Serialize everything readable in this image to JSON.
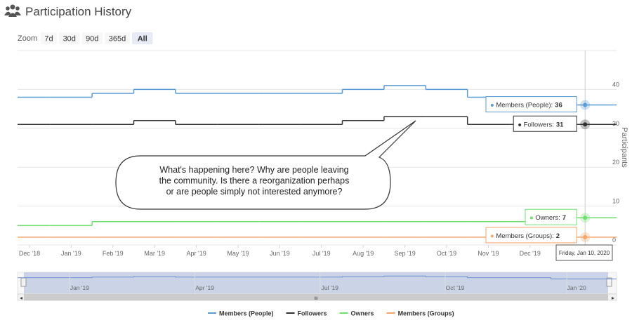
{
  "chart_data": {
    "type": "line",
    "title": "Participation History",
    "zoom_label": "Zoom",
    "zoom_buttons": [
      "7d",
      "30d",
      "90d",
      "365d",
      "All"
    ],
    "categories": [
      "Dec '18",
      "Jan '19",
      "Feb '19",
      "Mar '19",
      "Apr '19",
      "May '19",
      "Jun '19",
      "Jul '19",
      "Aug '19",
      "Sep '19",
      "Oct '19",
      "Nov '19",
      "Dec '19",
      "Jan '20"
    ],
    "y_label": "Participants",
    "ylim": [
      0,
      50
    ],
    "yticks": [
      0,
      10,
      20,
      30,
      40
    ],
    "grid": true,
    "series": [
      {
        "name": "Members (People)",
        "color": "#5b9bd5",
        "values": [
          38,
          38,
          39,
          40,
          39,
          39,
          39,
          39,
          40,
          41,
          40,
          38,
          38,
          36
        ]
      },
      {
        "name": "Followers",
        "color": "#333333",
        "values": [
          31,
          31,
          31,
          32,
          31,
          31,
          31,
          31,
          32,
          33,
          33,
          31,
          31,
          31
        ]
      },
      {
        "name": "Owners",
        "color": "#6fe06f",
        "values": [
          5,
          5,
          6,
          6,
          6,
          6,
          6,
          6,
          6,
          6,
          6,
          6,
          6,
          7
        ]
      },
      {
        "name": "Members (Groups)",
        "color": "#f5a46a",
        "values": [
          2,
          2,
          2,
          2,
          2,
          2,
          2,
          2,
          2,
          2,
          2,
          2,
          2,
          2
        ]
      }
    ],
    "tooltip_labels": [
      "Members (People):",
      "Followers:",
      "Owners:",
      "Members (Groups):"
    ],
    "tooltip_date": "Friday, Jan 10, 2020",
    "annotation": [
      "What's happening here? Why are people leaving",
      "the community. Is there a reorganization perhaps",
      "or are people simply not interested anymore?"
    ],
    "navigator_labels": [
      "Jan '19",
      "Apr '19",
      "Jul '19",
      "Oct '19",
      "Jan '20"
    ],
    "navigator_scroll_label": "III"
  }
}
